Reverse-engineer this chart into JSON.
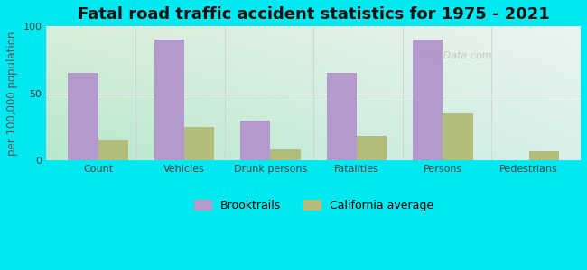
{
  "title": "Fatal road traffic accident statistics for 1975 - 2021",
  "ylabel": "per 100,000 population",
  "categories": [
    "Count",
    "Vehicles",
    "Drunk persons",
    "Fatalities",
    "Persons",
    "Pedestrians"
  ],
  "brooktrails": [
    65,
    90,
    30,
    65,
    90,
    0
  ],
  "ca_average": [
    15,
    25,
    8,
    18,
    35,
    7
  ],
  "brooktrails_color": "#b399cc",
  "ca_avg_color": "#b3bc7a",
  "ylim": [
    0,
    100
  ],
  "yticks": [
    0,
    50,
    100
  ],
  "background_outer": "#00e8f0",
  "background_tl": "#d8eed8",
  "background_tr": "#eaf4f0",
  "background_bl": "#b8e8cc",
  "background_br": "#d8f0e8",
  "legend_labels": [
    "Brooktrails",
    "California average"
  ],
  "bar_width": 0.35,
  "title_fontsize": 13,
  "axis_label_fontsize": 8.5,
  "tick_fontsize": 8,
  "legend_fontsize": 9
}
